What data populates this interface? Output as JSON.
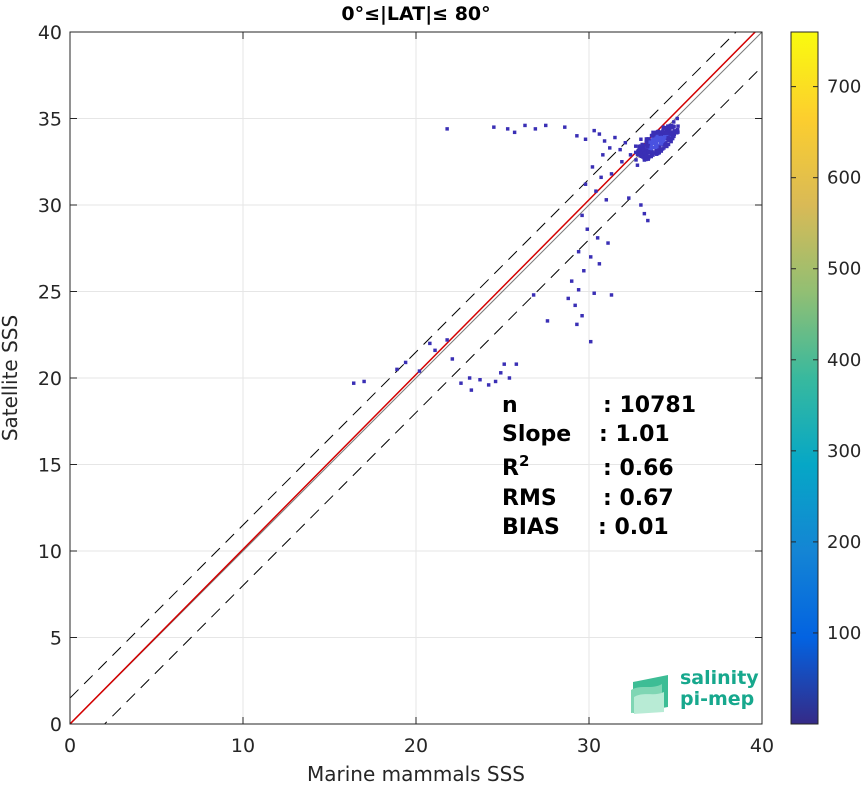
{
  "chart_data": {
    "type": "heatmap",
    "title": "0°≤|LAT|≤ 80°",
    "xlabel": "Marine mammals SSS",
    "ylabel": "Satellite SSS",
    "xlim": [
      0,
      40
    ],
    "ylim": [
      0,
      40
    ],
    "xticks": [
      "0",
      "10",
      "20",
      "30",
      "40"
    ],
    "yticks": [
      "0",
      "5",
      "10",
      "15",
      "20",
      "25",
      "30",
      "35",
      "40"
    ],
    "grid": true,
    "colorbar": {
      "colormap": "parula",
      "range": [
        0,
        760
      ],
      "ticks": [
        "100",
        "200",
        "300",
        "400",
        "500",
        "600",
        "700"
      ]
    },
    "reference_lines": [
      {
        "name": "1:1",
        "style": "solid",
        "color": "#7a7a7a",
        "intercept": 0,
        "slope": 1
      },
      {
        "name": "+dev",
        "style": "dashed",
        "color": "#000000",
        "intercept": 1.5,
        "slope": 1
      },
      {
        "name": "-dev",
        "style": "dashed",
        "color": "#000000",
        "intercept": -2,
        "slope": 1
      },
      {
        "name": "fit",
        "style": "solid",
        "color": "#d40000",
        "intercept": 0,
        "slope": 1.01
      }
    ],
    "points": [
      [
        21.8,
        34.4
      ],
      [
        24.5,
        34.5
      ],
      [
        25.3,
        34.4
      ],
      [
        25.7,
        34.2
      ],
      [
        26.3,
        34.6
      ],
      [
        26.9,
        34.4
      ],
      [
        27.5,
        34.6
      ],
      [
        28.6,
        34.5
      ],
      [
        29.3,
        34.0
      ],
      [
        29.8,
        33.8
      ],
      [
        30.3,
        34.3
      ],
      [
        30.6,
        34.1
      ],
      [
        30.9,
        33.7
      ],
      [
        31.2,
        33.3
      ],
      [
        31.5,
        33.9
      ],
      [
        31.8,
        33.2
      ],
      [
        32.1,
        33.6
      ],
      [
        32.4,
        32.9
      ],
      [
        32.7,
        33.4
      ],
      [
        33.0,
        33.8
      ],
      [
        33.3,
        33.1
      ],
      [
        33.5,
        33.5
      ],
      [
        33.7,
        34.2
      ],
      [
        33.9,
        33.7
      ],
      [
        34.1,
        34.0
      ],
      [
        34.3,
        34.5
      ],
      [
        34.5,
        33.9
      ],
      [
        34.7,
        34.6
      ],
      [
        34.9,
        34.8
      ],
      [
        35.1,
        35.0
      ],
      [
        33.2,
        32.6
      ],
      [
        33.6,
        32.8
      ],
      [
        34.0,
        33.2
      ],
      [
        32.8,
        32.3
      ],
      [
        31.9,
        32.5
      ],
      [
        30.8,
        32.9
      ],
      [
        30.2,
        32.2
      ],
      [
        30.7,
        31.6
      ],
      [
        31.3,
        31.8
      ],
      [
        29.8,
        31.2
      ],
      [
        30.4,
        30.8
      ],
      [
        31.0,
        30.3
      ],
      [
        32.3,
        30.4
      ],
      [
        33.0,
        30.0
      ],
      [
        33.2,
        29.5
      ],
      [
        33.4,
        29.1
      ],
      [
        29.6,
        29.4
      ],
      [
        29.9,
        28.6
      ],
      [
        30.5,
        28.1
      ],
      [
        31.1,
        27.8
      ],
      [
        29.4,
        27.3
      ],
      [
        30.1,
        27.0
      ],
      [
        30.6,
        26.6
      ],
      [
        29.7,
        26.2
      ],
      [
        29.0,
        25.6
      ],
      [
        29.4,
        25.1
      ],
      [
        30.3,
        24.9
      ],
      [
        31.3,
        24.8
      ],
      [
        28.8,
        24.6
      ],
      [
        29.2,
        24.2
      ],
      [
        29.6,
        23.6
      ],
      [
        29.3,
        23.1
      ],
      [
        27.6,
        23.3
      ],
      [
        30.1,
        22.1
      ],
      [
        26.8,
        24.8
      ],
      [
        25.1,
        20.8
      ],
      [
        25.8,
        20.8
      ],
      [
        24.9,
        20.3
      ],
      [
        25.4,
        20.0
      ],
      [
        24.6,
        19.8
      ],
      [
        24.2,
        19.6
      ],
      [
        23.7,
        19.9
      ],
      [
        23.1,
        20.0
      ],
      [
        22.6,
        19.7
      ],
      [
        23.2,
        19.3
      ],
      [
        22.1,
        21.1
      ],
      [
        21.8,
        22.2
      ],
      [
        20.8,
        22.0
      ],
      [
        21.1,
        21.6
      ],
      [
        19.4,
        20.9
      ],
      [
        18.9,
        20.5
      ],
      [
        17.0,
        19.8
      ],
      [
        16.4,
        19.7
      ],
      [
        20.2,
        20.4
      ]
    ],
    "annotations": [
      {
        "label": "n",
        "value": ": 10781"
      },
      {
        "label": "Slope",
        "value": ": 1.01"
      },
      {
        "label": "R",
        "sup": "2",
        "value": ": 0.66"
      },
      {
        "label": "RMS",
        "value": ": 0.67"
      },
      {
        "label": "BIAS",
        "value": ": 0.01"
      }
    ]
  },
  "logo": {
    "line1": "salinity",
    "line2": "pi-mep"
  }
}
